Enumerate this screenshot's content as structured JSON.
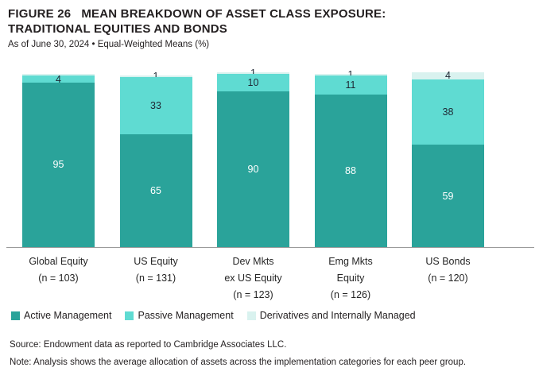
{
  "header": {
    "figure_label": "FIGURE 26",
    "title_line1": "MEAN BREAKDOWN OF ASSET CLASS EXPOSURE:",
    "title_line2": "TRADITIONAL EQUITIES AND BONDS",
    "subtitle": "As of June 30, 2024 • Equal-Weighted Means (%)"
  },
  "chart_data": {
    "type": "bar",
    "stacked": true,
    "value_unit": "%",
    "ylim": [
      0,
      100
    ],
    "grid": false,
    "legend_position": "bottom",
    "categories": [
      {
        "lines": [
          "Global Equity",
          "(n = 103)"
        ]
      },
      {
        "lines": [
          "US Equity",
          "(n = 131)"
        ]
      },
      {
        "lines": [
          "Dev Mkts",
          "ex US Equity",
          "(n = 123)"
        ]
      },
      {
        "lines": [
          "Emg Mkts",
          "Equity",
          "(n = 126)"
        ]
      },
      {
        "lines": [
          "US Bonds",
          "(n = 120)"
        ]
      }
    ],
    "series": [
      {
        "name": "Active Management",
        "color": "#2AA39A",
        "label_color": "#FFFFFF",
        "values": [
          95,
          65,
          90,
          88,
          59
        ],
        "labels": [
          "95",
          "65",
          "90",
          "88",
          "59"
        ]
      },
      {
        "name": "Passive Management",
        "color": "#5FDBD2",
        "label_color": "#1E2733",
        "values": [
          4,
          33,
          10,
          11,
          38
        ],
        "labels": [
          "4",
          "33",
          "10",
          "11",
          "38"
        ]
      },
      {
        "name": "Derivatives and Internally Managed",
        "color": "#D9F2EF",
        "label_color": "#1E2733",
        "values": [
          1,
          1,
          1,
          1,
          4
        ],
        "labels": [
          "",
          "1",
          "1",
          "1",
          "4"
        ]
      }
    ],
    "axis_line_color": "#9B9B9B"
  },
  "legend": {
    "items": [
      {
        "label": "Active Management",
        "color": "#2AA39A"
      },
      {
        "label": "Passive Management",
        "color": "#5FDBD2"
      },
      {
        "label": "Derivatives and Internally Managed",
        "color": "#D9F2EF"
      }
    ]
  },
  "footer": {
    "source": "Source: Endowment data as reported to Cambridge Associates LLC.",
    "note": "Note: Analysis shows the average allocation of assets across the implementation categories for each peer group."
  }
}
